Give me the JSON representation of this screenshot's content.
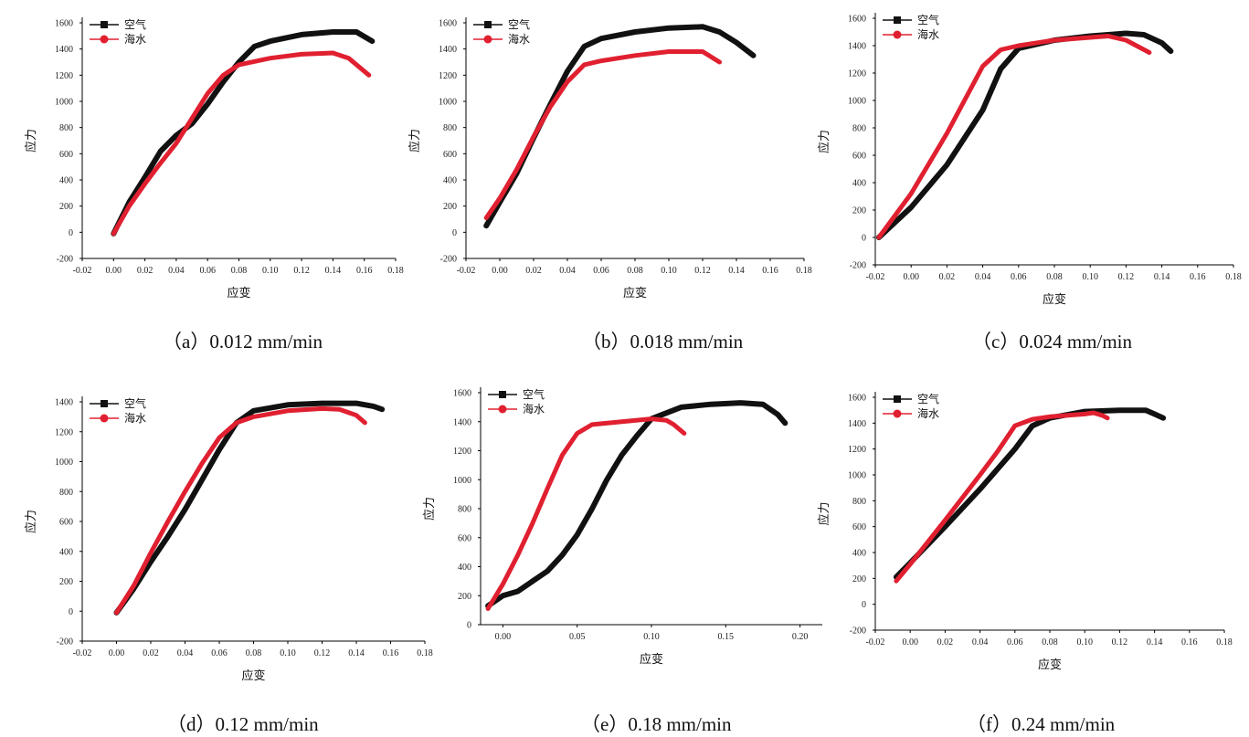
{
  "colors": {
    "air": "#111111",
    "seawater": "#e02030",
    "axis": "#000000"
  },
  "legend": {
    "air": "空气",
    "seawater": "海水"
  },
  "axes": {
    "xlabel": "应变",
    "ylabel": "应力"
  },
  "chart_data": [
    {
      "type": "line",
      "caption": "（a）0.012 mm/min",
      "xlabel": "应变",
      "ylabel": "应力",
      "xlim": [
        -0.02,
        0.18
      ],
      "ylim": [
        -200,
        1600
      ],
      "xticks": [
        "-0.02",
        "0.00",
        "0.02",
        "0.04",
        "0.06",
        "0.08",
        "0.10",
        "0.12",
        "0.14",
        "0.16",
        "0.18"
      ],
      "yticks": [
        "-200",
        "0",
        "200",
        "400",
        "600",
        "800",
        "1000",
        "1200",
        "1400",
        "1600"
      ],
      "legend": "top-left",
      "series": [
        {
          "name": "空气",
          "points": [
            [
              0,
              -10
            ],
            [
              0.01,
              230
            ],
            [
              0.02,
              420
            ],
            [
              0.03,
              620
            ],
            [
              0.04,
              740
            ],
            [
              0.05,
              830
            ],
            [
              0.06,
              980
            ],
            [
              0.07,
              1150
            ],
            [
              0.08,
              1300
            ],
            [
              0.09,
              1420
            ],
            [
              0.1,
              1460
            ],
            [
              0.12,
              1510
            ],
            [
              0.14,
              1530
            ],
            [
              0.155,
              1530
            ],
            [
              0.165,
              1460
            ]
          ]
        },
        {
          "name": "海水",
          "points": [
            [
              0,
              -10
            ],
            [
              0.01,
              200
            ],
            [
              0.02,
              370
            ],
            [
              0.03,
              530
            ],
            [
              0.04,
              680
            ],
            [
              0.05,
              870
            ],
            [
              0.06,
              1060
            ],
            [
              0.07,
              1200
            ],
            [
              0.08,
              1280
            ],
            [
              0.1,
              1330
            ],
            [
              0.12,
              1360
            ],
            [
              0.14,
              1370
            ],
            [
              0.15,
              1330
            ],
            [
              0.163,
              1200
            ]
          ]
        }
      ]
    },
    {
      "type": "line",
      "caption": "（b）0.018 mm/min",
      "xlabel": "应变",
      "ylabel": "应力",
      "xlim": [
        -0.02,
        0.18
      ],
      "ylim": [
        -200,
        1600
      ],
      "xticks": [
        "-0.02",
        "0.00",
        "0.02",
        "0.04",
        "0.06",
        "0.08",
        "0.10",
        "0.12",
        "0.14",
        "0.16",
        "0.18"
      ],
      "yticks": [
        "-200",
        "0",
        "200",
        "400",
        "600",
        "800",
        "1000",
        "1200",
        "1400",
        "1600"
      ],
      "legend": "top-left",
      "series": [
        {
          "name": "空气",
          "points": [
            [
              -0.008,
              50
            ],
            [
              0,
              230
            ],
            [
              0.01,
              450
            ],
            [
              0.02,
              720
            ],
            [
              0.03,
              980
            ],
            [
              0.04,
              1230
            ],
            [
              0.05,
              1420
            ],
            [
              0.06,
              1480
            ],
            [
              0.08,
              1530
            ],
            [
              0.1,
              1560
            ],
            [
              0.12,
              1570
            ],
            [
              0.13,
              1530
            ],
            [
              0.14,
              1450
            ],
            [
              0.15,
              1350
            ]
          ]
        },
        {
          "name": "海水",
          "points": [
            [
              -0.008,
              110
            ],
            [
              0,
              260
            ],
            [
              0.01,
              480
            ],
            [
              0.02,
              730
            ],
            [
              0.03,
              960
            ],
            [
              0.04,
              1150
            ],
            [
              0.05,
              1280
            ],
            [
              0.06,
              1310
            ],
            [
              0.08,
              1350
            ],
            [
              0.1,
              1380
            ],
            [
              0.12,
              1380
            ],
            [
              0.13,
              1300
            ]
          ]
        }
      ]
    },
    {
      "type": "line",
      "caption": "（c）0.024 mm/min",
      "xlabel": "应变",
      "ylabel": "应力",
      "xlim": [
        -0.02,
        0.18
      ],
      "ylim": [
        -200,
        1600
      ],
      "xticks": [
        "-0.02",
        "0.00",
        "0.02",
        "0.04",
        "0.06",
        "0.08",
        "0.10",
        "0.12",
        "0.14",
        "0.16",
        "0.18"
      ],
      "yticks": [
        "-200",
        "0",
        "200",
        "400",
        "600",
        "800",
        "1000",
        "1200",
        "1400",
        "1600"
      ],
      "legend": "top-left",
      "series": [
        {
          "name": "空气",
          "points": [
            [
              -0.018,
              0
            ],
            [
              0,
              220
            ],
            [
              0.02,
              530
            ],
            [
              0.04,
              930
            ],
            [
              0.05,
              1230
            ],
            [
              0.06,
              1380
            ],
            [
              0.08,
              1440
            ],
            [
              0.1,
              1470
            ],
            [
              0.12,
              1490
            ],
            [
              0.13,
              1480
            ],
            [
              0.14,
              1420
            ],
            [
              0.145,
              1360
            ]
          ]
        },
        {
          "name": "海水",
          "points": [
            [
              -0.018,
              0
            ],
            [
              0,
              320
            ],
            [
              0.02,
              760
            ],
            [
              0.04,
              1250
            ],
            [
              0.05,
              1370
            ],
            [
              0.06,
              1400
            ],
            [
              0.08,
              1440
            ],
            [
              0.1,
              1460
            ],
            [
              0.11,
              1470
            ],
            [
              0.12,
              1440
            ],
            [
              0.133,
              1350
            ]
          ]
        }
      ]
    },
    {
      "type": "line",
      "caption": "（d）0.12 mm/min",
      "xlabel": "应变",
      "ylabel": "应力",
      "xlim": [
        -0.02,
        0.18
      ],
      "ylim": [
        -200,
        1400
      ],
      "xticks": [
        "-0.02",
        "0.00",
        "0.02",
        "0.04",
        "0.06",
        "0.08",
        "0.10",
        "0.12",
        "0.14",
        "0.16",
        "0.18"
      ],
      "yticks": [
        "-200",
        "0",
        "200",
        "400",
        "600",
        "800",
        "1000",
        "1200",
        "1400"
      ],
      "legend": "top-left",
      "series": [
        {
          "name": "空气",
          "points": [
            [
              0,
              -10
            ],
            [
              0.01,
              150
            ],
            [
              0.02,
              330
            ],
            [
              0.03,
              500
            ],
            [
              0.04,
              680
            ],
            [
              0.05,
              880
            ],
            [
              0.06,
              1080
            ],
            [
              0.07,
              1260
            ],
            [
              0.08,
              1340
            ],
            [
              0.1,
              1380
            ],
            [
              0.12,
              1390
            ],
            [
              0.14,
              1390
            ],
            [
              0.15,
              1370
            ],
            [
              0.155,
              1350
            ]
          ]
        },
        {
          "name": "海水",
          "points": [
            [
              0,
              -10
            ],
            [
              0.01,
              170
            ],
            [
              0.02,
              390
            ],
            [
              0.03,
              600
            ],
            [
              0.04,
              800
            ],
            [
              0.05,
              990
            ],
            [
              0.06,
              1160
            ],
            [
              0.07,
              1260
            ],
            [
              0.08,
              1300
            ],
            [
              0.1,
              1340
            ],
            [
              0.12,
              1355
            ],
            [
              0.13,
              1350
            ],
            [
              0.14,
              1310
            ],
            [
              0.145,
              1260
            ]
          ]
        }
      ]
    },
    {
      "type": "line",
      "caption": "（e）0.18 mm/min",
      "xlabel": "应变",
      "ylabel": "应力",
      "xlim": [
        -0.015,
        0.215
      ],
      "ylim": [
        0,
        1600
      ],
      "xticks": [
        "0.00",
        "0.05",
        "0.10",
        "0.15",
        "0.20"
      ],
      "yticks": [
        "0",
        "200",
        "400",
        "600",
        "800",
        "1000",
        "1200",
        "1400",
        "1600"
      ],
      "legend": "top-left",
      "series": [
        {
          "name": "空气",
          "points": [
            [
              -0.01,
              130
            ],
            [
              0,
              200
            ],
            [
              0.01,
              230
            ],
            [
              0.02,
              300
            ],
            [
              0.03,
              370
            ],
            [
              0.04,
              480
            ],
            [
              0.05,
              620
            ],
            [
              0.06,
              800
            ],
            [
              0.07,
              1000
            ],
            [
              0.08,
              1170
            ],
            [
              0.09,
              1300
            ],
            [
              0.1,
              1420
            ],
            [
              0.12,
              1500
            ],
            [
              0.14,
              1520
            ],
            [
              0.16,
              1530
            ],
            [
              0.175,
              1520
            ],
            [
              0.185,
              1450
            ],
            [
              0.19,
              1390
            ]
          ]
        },
        {
          "name": "海水",
          "points": [
            [
              -0.01,
              110
            ],
            [
              0,
              280
            ],
            [
              0.01,
              480
            ],
            [
              0.02,
              700
            ],
            [
              0.03,
              940
            ],
            [
              0.04,
              1170
            ],
            [
              0.05,
              1320
            ],
            [
              0.06,
              1380
            ],
            [
              0.08,
              1400
            ],
            [
              0.1,
              1420
            ],
            [
              0.11,
              1410
            ],
            [
              0.115,
              1380
            ],
            [
              0.122,
              1320
            ]
          ]
        }
      ]
    },
    {
      "type": "line",
      "caption": "（f）0.24 mm/min",
      "xlabel": "应变",
      "ylabel": "应力",
      "xlim": [
        -0.02,
        0.18
      ],
      "ylim": [
        -200,
        1600
      ],
      "xticks": [
        "-0.02",
        "0.00",
        "0.02",
        "0.04",
        "0.06",
        "0.08",
        "0.10",
        "0.12",
        "0.14",
        "0.16",
        "0.18"
      ],
      "yticks": [
        "-200",
        "0",
        "200",
        "400",
        "600",
        "800",
        "1000",
        "1200",
        "1400",
        "1600"
      ],
      "legend": "top-left",
      "series": [
        {
          "name": "空气",
          "points": [
            [
              -0.008,
              210
            ],
            [
              0,
              320
            ],
            [
              0.02,
              600
            ],
            [
              0.04,
              890
            ],
            [
              0.06,
              1200
            ],
            [
              0.07,
              1380
            ],
            [
              0.08,
              1440
            ],
            [
              0.1,
              1490
            ],
            [
              0.12,
              1500
            ],
            [
              0.135,
              1500
            ],
            [
              0.14,
              1470
            ],
            [
              0.145,
              1440
            ]
          ]
        },
        {
          "name": "海水",
          "points": [
            [
              -0.008,
              180
            ],
            [
              0,
              310
            ],
            [
              0.02,
              650
            ],
            [
              0.04,
              1000
            ],
            [
              0.05,
              1180
            ],
            [
              0.06,
              1380
            ],
            [
              0.07,
              1430
            ],
            [
              0.08,
              1450
            ],
            [
              0.1,
              1470
            ],
            [
              0.105,
              1480
            ],
            [
              0.11,
              1460
            ],
            [
              0.113,
              1440
            ]
          ]
        }
      ]
    }
  ]
}
